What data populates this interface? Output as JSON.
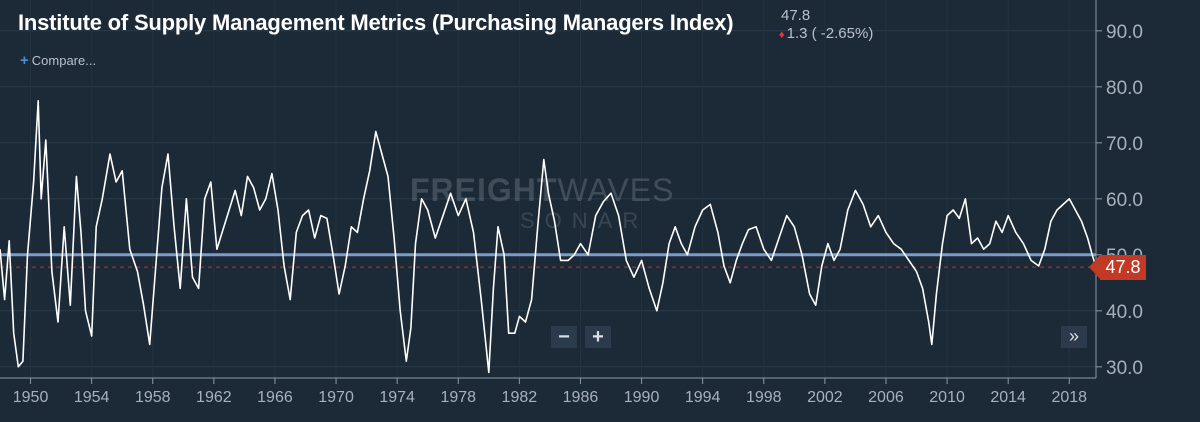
{
  "header": {
    "title": "Institute of Supply Management Metrics (Purchasing Managers Index)",
    "last_value": "47.8",
    "change_text": "1.3 ( -2.65%)",
    "compare_label": "Compare..."
  },
  "watermark": {
    "brand_bold": "FREIGHT",
    "brand_thin": "WAVES",
    "sub": "SONAR"
  },
  "controls": {
    "zoom_out": "−",
    "zoom_in": "+",
    "scroll_end": "»"
  },
  "colors": {
    "background": "#1c2a38",
    "line": "#ffffff",
    "reference_line": "#7a9cc8",
    "last_value_tag": "#c23a26",
    "down_arrow": "#e23b2e"
  },
  "chart_data": {
    "type": "line",
    "title": "Institute of Supply Management Metrics (Purchasing Managers Index)",
    "xlabel": "",
    "ylabel": "",
    "xlim": [
      1948.0,
      2019.75
    ],
    "ylim": [
      28.0,
      95.5
    ],
    "y_ticks": [
      30.0,
      40.0,
      50.0,
      60.0,
      70.0,
      80.0,
      90.0
    ],
    "y_tick_labels": [
      "30.0",
      "40.0",
      "50.0",
      "60.0",
      "70.0",
      "80.0",
      "90.0"
    ],
    "x_ticks": [
      1950,
      1954,
      1958,
      1962,
      1966,
      1970,
      1974,
      1978,
      1982,
      1986,
      1990,
      1994,
      1998,
      2002,
      2006,
      2010,
      2014,
      2018
    ],
    "x_tick_labels": [
      "1950",
      "1954",
      "1958",
      "1962",
      "1966",
      "1970",
      "1974",
      "1978",
      "1982",
      "1986",
      "1990",
      "1994",
      "1998",
      "2002",
      "2006",
      "2010",
      "2014",
      "2018"
    ],
    "reference_line": 50,
    "last_value": 47.8,
    "grid": true,
    "series": [
      {
        "x": [
          1948.0,
          1948.3,
          1948.6,
          1948.9,
          1949.2,
          1949.5,
          1949.8,
          1950.2,
          1950.5,
          1950.7,
          1951.0,
          1951.4,
          1951.8,
          1952.2,
          1952.6,
          1953.0,
          1953.3,
          1953.6,
          1954.0,
          1954.3,
          1954.7,
          1955.2,
          1955.6,
          1956.0,
          1956.5,
          1957.0,
          1957.4,
          1957.8,
          1958.2,
          1958.6,
          1959.0,
          1959.4,
          1959.8,
          1960.2,
          1960.6,
          1961.0,
          1961.4,
          1961.8,
          1962.2,
          1962.6,
          1963.0,
          1963.4,
          1963.8,
          1964.2,
          1964.6,
          1965.0,
          1965.4,
          1965.8,
          1966.2,
          1966.6,
          1967.0,
          1967.4,
          1967.8,
          1968.2,
          1968.6,
          1969.0,
          1969.4,
          1969.8,
          1970.2,
          1970.6,
          1971.0,
          1971.4,
          1971.8,
          1972.2,
          1972.6,
          1973.0,
          1973.4,
          1973.8,
          1974.2,
          1974.6,
          1974.9,
          1975.2,
          1975.6,
          1976.0,
          1976.5,
          1977.0,
          1977.5,
          1978.0,
          1978.5,
          1979.0,
          1979.5,
          1980.0,
          1980.3,
          1980.6,
          1981.0,
          1981.3,
          1981.7,
          1982.0,
          1982.4,
          1982.8,
          1983.2,
          1983.6,
          1983.9,
          1984.3,
          1984.7,
          1985.2,
          1985.6,
          1986.0,
          1986.5,
          1987.0,
          1987.5,
          1988.0,
          1988.5,
          1989.0,
          1989.5,
          1990.0,
          1990.5,
          1991.0,
          1991.4,
          1991.8,
          1992.2,
          1992.6,
          1993.0,
          1993.5,
          1994.0,
          1994.5,
          1995.0,
          1995.4,
          1995.8,
          1996.2,
          1996.6,
          1997.0,
          1997.5,
          1998.0,
          1998.5,
          1999.0,
          1999.5,
          2000.0,
          2000.5,
          2001.0,
          2001.4,
          2001.8,
          2002.2,
          2002.6,
          2003.0,
          2003.5,
          2004.0,
          2004.5,
          2005.0,
          2005.5,
          2006.0,
          2006.5,
          2007.0,
          2007.5,
          2008.0,
          2008.4,
          2008.8,
          2009.0,
          2009.3,
          2009.7,
          2010.0,
          2010.4,
          2010.8,
          2011.2,
          2011.6,
          2012.0,
          2012.4,
          2012.8,
          2013.2,
          2013.6,
          2014.0,
          2014.5,
          2015.0,
          2015.5,
          2016.0,
          2016.4,
          2016.8,
          2017.2,
          2017.6,
          2018.0,
          2018.4,
          2018.8,
          2019.2,
          2019.5,
          2019.75
        ],
        "y": [
          51.0,
          42.0,
          52.5,
          36.0,
          30.0,
          31.0,
          50.0,
          63.0,
          77.5,
          60.0,
          70.5,
          47.0,
          38.0,
          55.0,
          41.0,
          64.0,
          54.0,
          40.0,
          35.5,
          55.0,
          60.0,
          68.0,
          63.0,
          65.0,
          51.0,
          47.0,
          41.0,
          34.0,
          48.0,
          62.0,
          68.0,
          55.0,
          44.0,
          60.0,
          46.0,
          44.0,
          60.0,
          63.0,
          51.0,
          54.5,
          58.0,
          61.5,
          57.0,
          64.0,
          62.0,
          58.0,
          60.0,
          64.5,
          58.0,
          48.0,
          42.0,
          54.0,
          57.0,
          58.0,
          53.0,
          57.0,
          56.5,
          50.0,
          43.0,
          48.0,
          55.0,
          54.0,
          60.0,
          65.0,
          72.0,
          68.0,
          64.0,
          53.0,
          40.0,
          31.0,
          37.0,
          52.0,
          60.0,
          58.0,
          53.0,
          57.0,
          61.0,
          57.0,
          60.0,
          54.0,
          42.0,
          29.0,
          44.0,
          55.0,
          50.0,
          36.0,
          36.0,
          39.0,
          38.0,
          42.0,
          55.0,
          67.0,
          61.0,
          56.0,
          49.0,
          49.0,
          50.0,
          52.0,
          50.0,
          57.0,
          59.5,
          61.0,
          57.0,
          49.0,
          46.0,
          49.0,
          44.0,
          40.0,
          45.0,
          52.0,
          55.0,
          52.0,
          50.0,
          55.0,
          58.0,
          59.0,
          54.0,
          48.0,
          45.0,
          49.0,
          52.0,
          54.5,
          55.0,
          51.0,
          49.0,
          53.0,
          57.0,
          55.0,
          50.0,
          43.0,
          41.0,
          48.0,
          52.0,
          49.0,
          51.0,
          58.0,
          61.5,
          59.0,
          55.0,
          57.0,
          54.0,
          52.0,
          51.0,
          49.0,
          47.0,
          44.0,
          38.0,
          34.0,
          43.0,
          52.0,
          57.0,
          58.0,
          56.5,
          60.0,
          52.0,
          53.0,
          51.0,
          52.0,
          56.0,
          54.0,
          57.0,
          54.0,
          52.0,
          49.0,
          48.0,
          51.0,
          56.0,
          58.0,
          59.0,
          60.0,
          58.0,
          56.0,
          53.0,
          50.0,
          47.8
        ]
      }
    ]
  }
}
